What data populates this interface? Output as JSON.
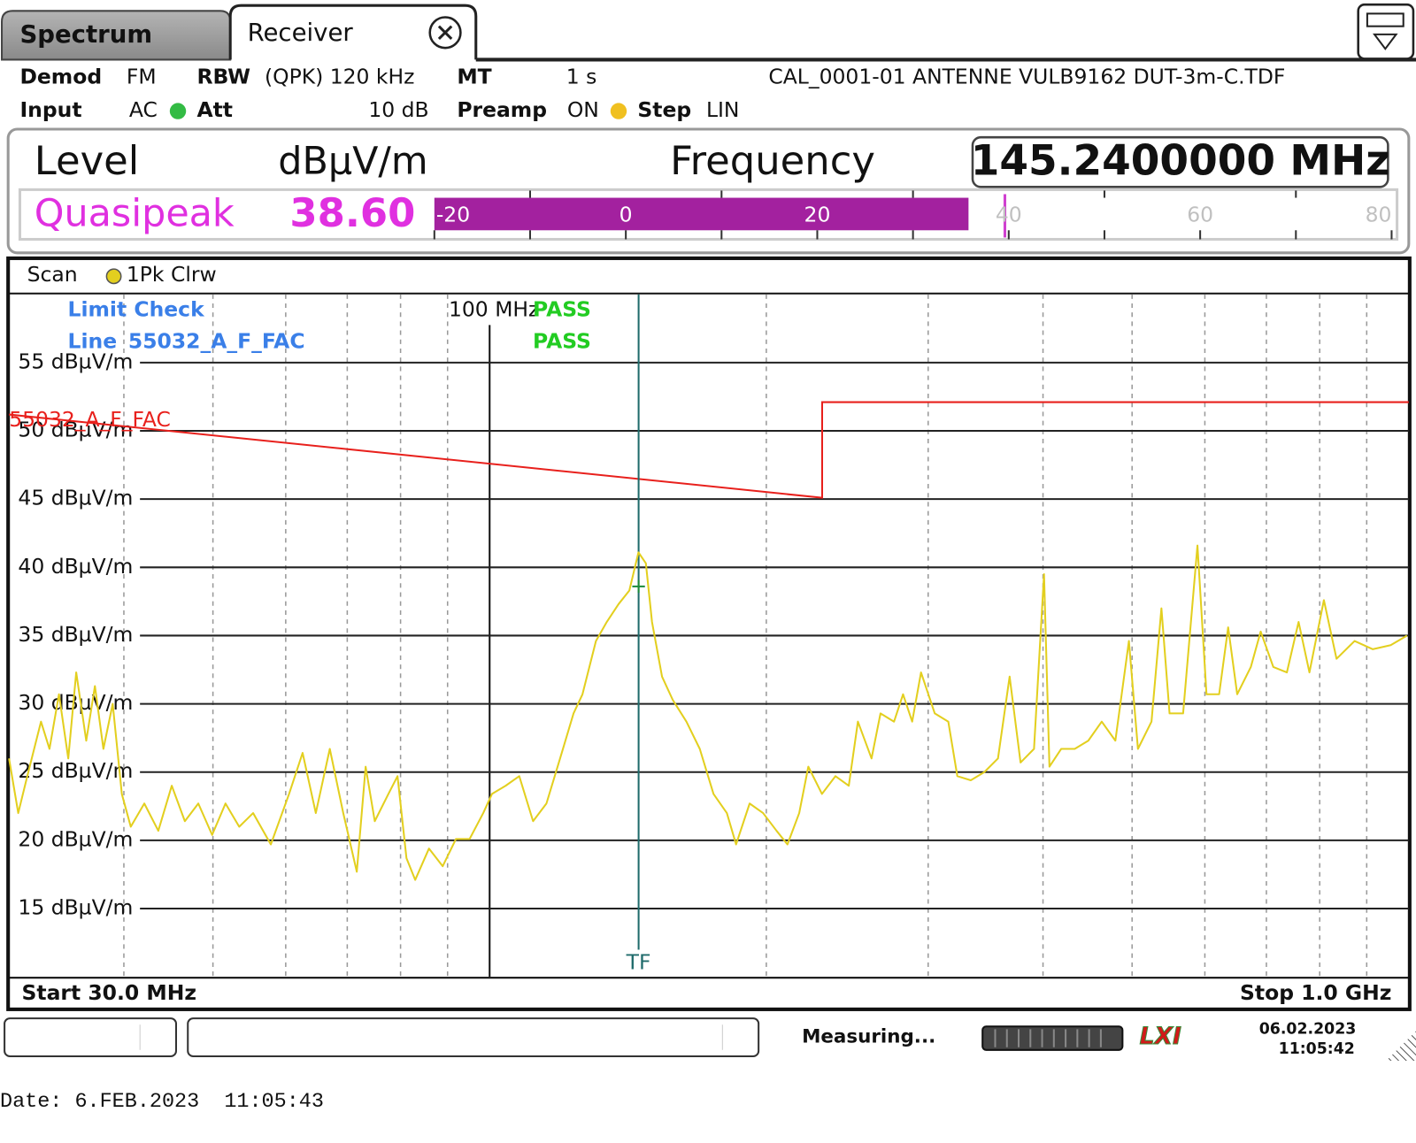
{
  "tabs": [
    "Spectrum",
    "Receiver"
  ],
  "header": {
    "demod_label": "Demod",
    "demod": "FM",
    "rbw_label": "RBW",
    "rbw": "(QPK) 120 kHz",
    "mt_label": "MT",
    "mt": "1 s",
    "transducer": "CAL_0001-01 ANTENNE VULB9162 DUT-3m-C.TDF",
    "input_label": "Input",
    "input": "AC",
    "att_label": "Att",
    "att": "10 dB",
    "preamp_label": "Preamp",
    "preamp": "ON",
    "step_label": "Step",
    "step": "LIN"
  },
  "level_display": {
    "level_label": "Level",
    "unit": "dBµV/m",
    "frequency_label": "Frequency",
    "frequency": "145.2400000 MHz",
    "detector": "Quasipeak",
    "level": "38.60",
    "bar_value": 35.8,
    "bar_max": 39.6,
    "scale_lim": [
      -20,
      80
    ],
    "scale_ticks": [
      -20,
      0,
      20,
      40,
      60,
      80
    ],
    "scale_minor_ticks": [
      -10,
      10,
      30,
      50,
      70
    ]
  },
  "chart_data": {
    "type": "line",
    "scan_label": "Scan",
    "xscale": "log",
    "xlim": [
      30,
      1000
    ],
    "ylim": [
      10,
      60
    ],
    "grid": true,
    "xgrid": [
      40,
      50,
      60,
      70,
      80,
      90,
      200,
      300,
      400,
      500,
      600,
      700,
      800,
      900
    ],
    "xticks": [
      {
        "value": 100,
        "label": "100 MHz"
      }
    ],
    "yticks": [
      {
        "value": 15,
        "label": "15 dBµV/m"
      },
      {
        "value": 20,
        "label": "20 dBµV/m"
      },
      {
        "value": 25,
        "label": "25 dBµV/m"
      },
      {
        "value": 30,
        "label": "30 dBµV/m"
      },
      {
        "value": 35,
        "label": "35 dBµV/m"
      },
      {
        "value": 40,
        "label": "40 dBµV/m"
      },
      {
        "value": 45,
        "label": "45 dBµV/m"
      },
      {
        "value": 50,
        "label": "50 dBµV/m"
      },
      {
        "value": 55,
        "label": "55 dBµV/m"
      }
    ],
    "start_label": "Start 30.0 MHz",
    "stop_label": "Stop 1.0 GHz",
    "x": [
      30.0,
      30.7,
      31.4,
      32.5,
      33.2,
      34.0,
      34.8,
      35.5,
      36.4,
      37.2,
      38.0,
      38.9,
      39.8,
      40.7,
      42.1,
      43.6,
      45.1,
      46.6,
      48.2,
      49.9,
      51.6,
      53.4,
      55.3,
      57.8,
      60.5,
      62.6,
      64.7,
      67.0,
      69.3,
      71.7,
      73.3,
      75.0,
      77.6,
      79.4,
      81.2,
      83.0,
      85.9,
      88.9,
      91.9,
      95.1,
      98.4,
      100.6,
      104.1,
      107.7,
      111.5,
      115.3,
      119.3,
      123.4,
      126.2,
      130.5,
      134.1,
      138.1,
      141.9,
      145.2,
      147.9,
      150.2,
      154.0,
      158.2,
      163.7,
      169.3,
      175.2,
      181.2,
      185.4,
      191.8,
      198.4,
      205.2,
      210.9,
      217.2,
      222.2,
      229.9,
      237.8,
      245.9,
      251.6,
      260.3,
      266.2,
      275.4,
      281.7,
      288.2,
      294.7,
      305.0,
      315.5,
      322.7,
      333.8,
      345.3,
      357.3,
      367.9,
      378.1,
      391.1,
      401.0,
      406.5,
      418.6,
      433.1,
      448.0,
      463.4,
      479.5,
      496.0,
      507.4,
      524.9,
      538.1,
      549.2,
      568.2,
      589.0,
      602.5,
      621.9,
      636.1,
      650.6,
      673.2,
      690.1,
      712.3,
      736.9,
      758.8,
      779.7,
      808.4,
      834.5,
      873.0,
      913.5,
      955.7,
      995.4
    ],
    "series": [
      {
        "name": "1Pk Clrw",
        "color": "#e3cf1f",
        "values": [
          26.0,
          22.0,
          24.7,
          28.7,
          26.7,
          30.7,
          26.0,
          32.3,
          27.3,
          31.3,
          26.7,
          30.0,
          23.4,
          21.0,
          22.7,
          20.7,
          24.0,
          21.4,
          22.7,
          20.4,
          22.7,
          21.0,
          22.0,
          19.7,
          23.4,
          26.4,
          22.0,
          26.7,
          22.0,
          17.7,
          25.4,
          21.4,
          23.4,
          24.7,
          18.7,
          17.1,
          19.4,
          18.1,
          20.1,
          20.1,
          22.0,
          23.4,
          24.0,
          24.7,
          21.4,
          22.7,
          26.0,
          29.3,
          30.7,
          34.6,
          36.0,
          37.3,
          38.3,
          41.1,
          40.3,
          36.0,
          32.0,
          30.3,
          28.7,
          26.7,
          23.4,
          22.0,
          19.7,
          22.7,
          22.0,
          20.7,
          19.7,
          22.0,
          25.4,
          23.4,
          24.7,
          24.0,
          28.7,
          26.0,
          29.3,
          28.7,
          30.7,
          28.7,
          32.3,
          29.3,
          28.7,
          24.7,
          24.4,
          25.0,
          26.0,
          32.0,
          25.7,
          26.7,
          39.5,
          25.4,
          26.7,
          26.7,
          27.3,
          28.7,
          27.3,
          34.6,
          26.7,
          28.7,
          37.0,
          29.3,
          29.3,
          41.6,
          30.7,
          30.7,
          35.6,
          30.7,
          32.7,
          35.3,
          32.7,
          32.3,
          36.0,
          32.3,
          37.6,
          33.3,
          34.6,
          34.0,
          34.3,
          35.0
        ]
      }
    ],
    "limit_line": {
      "name": "55032_A_F_FAC",
      "color": "#e8201c",
      "x": [
        30,
        230,
        230,
        1000
      ],
      "values": [
        51.2,
        45.1,
        52.1,
        52.1
      ]
    },
    "limit_check": {
      "title": "Limit Check",
      "result": "PASS",
      "line_label": "Line",
      "line_result": "PASS"
    },
    "marker": {
      "label": "TF",
      "x": 145.24,
      "value": 38.6
    }
  },
  "status": {
    "message": "Measuring...",
    "logo": "LXI",
    "date": "06.02.2023",
    "time": "11:05:42"
  },
  "footer": "Date: 6.FEB.2023  11:05:43"
}
